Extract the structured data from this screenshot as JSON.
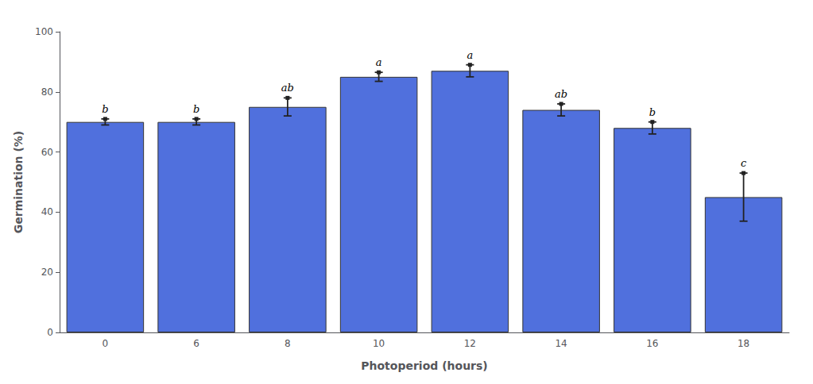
{
  "chart_data": {
    "type": "bar",
    "x_label": "Photoperiod (hours)",
    "y_label": "Germination (%)",
    "categories": [
      "0",
      "6",
      "8",
      "10",
      "12",
      "14",
      "16",
      "18"
    ],
    "values": [
      70.0,
      70.0,
      75.0,
      85.0,
      87.0,
      74.0,
      68.0,
      45.0
    ],
    "errors": [
      1.0,
      1.0,
      3.0,
      1.5,
      2.0,
      2.0,
      2.0,
      8.0
    ],
    "annotations": [
      "b",
      "b",
      "ab",
      "a",
      "a",
      "ab",
      "b",
      "c"
    ],
    "ylim": [
      0,
      100
    ],
    "yticks": [
      0,
      20,
      40,
      60,
      80,
      100
    ],
    "grid": false
  }
}
